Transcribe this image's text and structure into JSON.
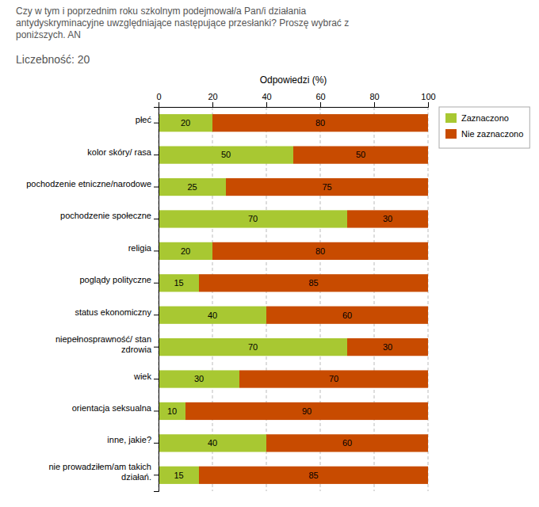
{
  "chart_data": {
    "type": "bar",
    "orientation": "horizontal",
    "stacked": true,
    "title": "Czy w tym i poprzednim roku szkolnym podejmował/a Pan/i działania\nantydyskryminacyjne uwzględniające następujące przesłanki? Proszę wybrać z\nponiższych. AN",
    "subtitle": "Liczebność: 20",
    "x_label": "Odpowiedzi (%)",
    "categories": [
      "płeć",
      "kolor skóry/ rasa",
      "pochodzenie etniczne/narodowe",
      "pochodzenie społeczne",
      "religia",
      "poglądy polityczne",
      "status ekonomiczny",
      "niepełnosprawność/ stan\nzdrowia",
      "wiek",
      "orientacja seksualna",
      "inne, jakie?",
      "nie prowadziłem/am takich\ndziałań."
    ],
    "series": [
      {
        "name": "Zaznaczono",
        "color": "#a8c832",
        "values": [
          20,
          50,
          25,
          70,
          20,
          15,
          40,
          70,
          30,
          10,
          40,
          15
        ]
      },
      {
        "name": "Nie zaznaczono",
        "color": "#c84b00",
        "values": [
          80,
          50,
          75,
          30,
          80,
          85,
          60,
          30,
          70,
          90,
          60,
          85
        ]
      }
    ],
    "xlim": [
      0,
      100
    ],
    "xticks": [
      0,
      20,
      40,
      60,
      80,
      100
    ],
    "grid": true,
    "data_labels": true,
    "legend": "upper right"
  }
}
